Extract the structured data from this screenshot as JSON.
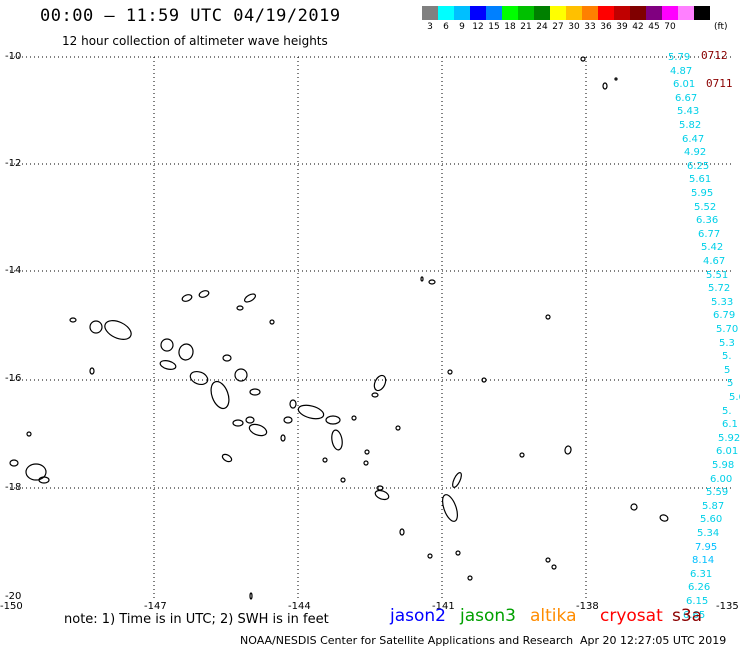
{
  "header": {
    "title": "00:00 – 11:59 UTC 04/19/2019",
    "subtitle": "12 hour collection of altimeter wave heights"
  },
  "legend": {
    "colors": [
      "#808080",
      "#00ffff",
      "#00bfff",
      "#0000ff",
      "#0080ff",
      "#00ff00",
      "#00c000",
      "#008000",
      "#ffff00",
      "#ffc000",
      "#ff8000",
      "#ff0000",
      "#c00000",
      "#800000",
      "#800080",
      "#ff00ff",
      "#ff80ff",
      "#000000"
    ],
    "labels": [
      "3",
      "6",
      "9",
      "12",
      "15",
      "18",
      "21",
      "24",
      "27",
      "30",
      "33",
      "36",
      "39",
      "42",
      "45",
      "70"
    ],
    "unit": "(ft)"
  },
  "axes": {
    "lat_labels": [
      "-10",
      "-12",
      "-14",
      "-16",
      "-18",
      "-20"
    ],
    "lon_labels": [
      "-150",
      "-147",
      "-144",
      "-141",
      "-138",
      "-135"
    ]
  },
  "swh_values": [
    "5.79",
    "4.87",
    "6.01",
    "6.67",
    "5.43",
    "5.82",
    "6.47",
    "4.92",
    "6.25",
    "5.61",
    "5.95",
    "5.52",
    "6.36",
    "6.77",
    "5.42",
    "4.67",
    "5.51",
    "5.72",
    "5.33",
    "6.79",
    "5.70",
    "5.3",
    "5.",
    "5",
    "5",
    "5.6",
    "5.",
    "6.1",
    "5.92",
    "6.01",
    "5.98",
    "6.00",
    "5.59",
    "5.87",
    "5.60",
    "5.34",
    "7.95",
    "8.14",
    "6.31",
    "6.26",
    "6.15",
    "6.65"
  ],
  "pass_labels": [
    "0712",
    "0711"
  ],
  "note": "note: 1) Time is in UTC; 2) SWH is in feet",
  "satellites": [
    {
      "name": "jason2",
      "color": "#0000ff"
    },
    {
      "name": "jason3",
      "color": "#00a000"
    },
    {
      "name": "altika",
      "color": "#ff8c00"
    },
    {
      "name": "cryosat",
      "color": "#ff0000"
    },
    {
      "name": "s3a",
      "color": "#8B0000"
    }
  ],
  "footer": {
    "credit": "NOAA/NESDIS Center for Satellite Applications and Research",
    "timestamp": "Apr 20 12:27:05 UTC 2019"
  }
}
